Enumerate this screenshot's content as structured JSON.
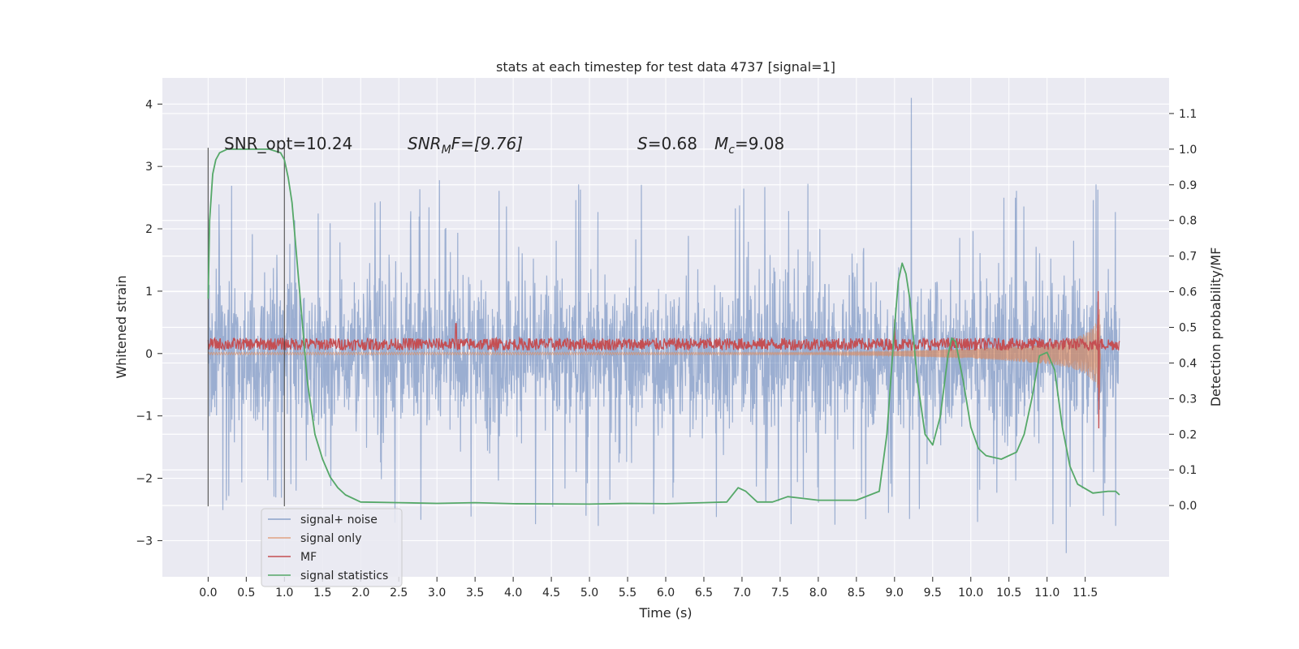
{
  "chart_data": {
    "type": "line",
    "title": "stats at each timestep for test data 4737 [signal=1]",
    "xlabel": "Time (s)",
    "ylabel": "Whitened strain",
    "ylabel_right": "Detection probability/MF",
    "xlim": [
      -0.6,
      12.6
    ],
    "ylim": [
      -3.58,
      4.42
    ],
    "ylim_right": [
      -0.2,
      1.2
    ],
    "x_ticks": [
      "0.0",
      "0.5",
      "1.0",
      "1.5",
      "2.0",
      "2.5",
      "3.0",
      "3.5",
      "4.0",
      "4.5",
      "5.0",
      "5.5",
      "6.0",
      "6.5",
      "7.0",
      "7.5",
      "8.0",
      "8.5",
      "9.0",
      "9.5",
      "10.0",
      "10.5",
      "11.0",
      "11.5"
    ],
    "y_ticks": [
      "−3",
      "−2",
      "−1",
      "0",
      "1",
      "2",
      "3",
      "4"
    ],
    "y_ticks_right": [
      "0.0",
      "0.1",
      "0.2",
      "0.3",
      "0.4",
      "0.5",
      "0.6",
      "0.7",
      "0.8",
      "0.9",
      "1.0",
      "1.1"
    ],
    "grid": true,
    "legend_position": "lower-left",
    "annotations": {
      "snr_opt": "SNR_opt=10.24",
      "snr_mf_main": "SNR",
      "snr_mf_sub": "M",
      "snr_mf_rest": "F=[9.76]",
      "s_main": "S",
      "s_rest": "=0.68",
      "mc_main": "M",
      "mc_sub": "c",
      "mc_rest": "=9.08"
    },
    "vertical_markers": [
      0.0,
      1.0
    ],
    "series": [
      {
        "name": "signal+ noise",
        "color": "#4c72b0",
        "axis": "left",
        "description_values": {
          "x_range": [
            0.0,
            11.95
          ],
          "typical_band": [
            -1.3,
            1.6
          ],
          "peak_max": 4.1,
          "peak_min": -3.2
        }
      },
      {
        "name": "signal only",
        "color": "#dd8452",
        "axis": "left",
        "envelope": {
          "x": [
            8.0,
            9.0,
            10.0,
            10.5,
            11.0,
            11.3,
            11.5,
            11.65,
            11.7
          ],
          "amp": [
            0.02,
            0.04,
            0.08,
            0.12,
            0.17,
            0.23,
            0.32,
            0.5,
            0.8
          ]
        }
      },
      {
        "name": "MF",
        "color": "#c44e52",
        "axis": "left",
        "band": [
          0.05,
          0.25
        ],
        "spikes": [
          {
            "x": 3.25,
            "y": 0.48
          },
          {
            "x": 9.0,
            "y": 0.55
          },
          {
            "x": 11.67,
            "y": 1.0
          },
          {
            "x": 11.68,
            "y": -1.2
          }
        ]
      },
      {
        "name": "signal statistics",
        "color": "#55a868",
        "axis": "right",
        "x": [
          0.0,
          0.02,
          0.06,
          0.1,
          0.15,
          0.25,
          0.4,
          0.6,
          0.8,
          0.95,
          1.0,
          1.05,
          1.1,
          1.2,
          1.3,
          1.4,
          1.5,
          1.6,
          1.7,
          1.8,
          2.0,
          2.5,
          3.0,
          3.5,
          4.0,
          5.0,
          5.5,
          6.0,
          6.5,
          6.8,
          6.95,
          7.05,
          7.2,
          7.4,
          7.6,
          7.8,
          8.0,
          8.5,
          8.8,
          8.9,
          9.0,
          9.05,
          9.1,
          9.15,
          9.2,
          9.3,
          9.4,
          9.5,
          9.6,
          9.7,
          9.75,
          9.8,
          9.9,
          10.0,
          10.1,
          10.2,
          10.4,
          10.6,
          10.7,
          10.8,
          10.9,
          11.0,
          11.1,
          11.2,
          11.3,
          11.4,
          11.6,
          11.8,
          11.9,
          11.95
        ],
        "y": [
          0.58,
          0.8,
          0.93,
          0.97,
          0.99,
          1.0,
          1.0,
          1.0,
          1.0,
          0.99,
          0.97,
          0.92,
          0.85,
          0.6,
          0.35,
          0.2,
          0.13,
          0.08,
          0.05,
          0.03,
          0.01,
          0.008,
          0.006,
          0.008,
          0.005,
          0.004,
          0.006,
          0.005,
          0.008,
          0.01,
          0.05,
          0.04,
          0.01,
          0.01,
          0.025,
          0.02,
          0.015,
          0.015,
          0.04,
          0.2,
          0.5,
          0.63,
          0.68,
          0.65,
          0.58,
          0.35,
          0.2,
          0.17,
          0.25,
          0.42,
          0.47,
          0.46,
          0.35,
          0.22,
          0.16,
          0.14,
          0.13,
          0.15,
          0.2,
          0.3,
          0.42,
          0.43,
          0.38,
          0.22,
          0.11,
          0.06,
          0.035,
          0.04,
          0.04,
          0.03
        ]
      }
    ]
  }
}
